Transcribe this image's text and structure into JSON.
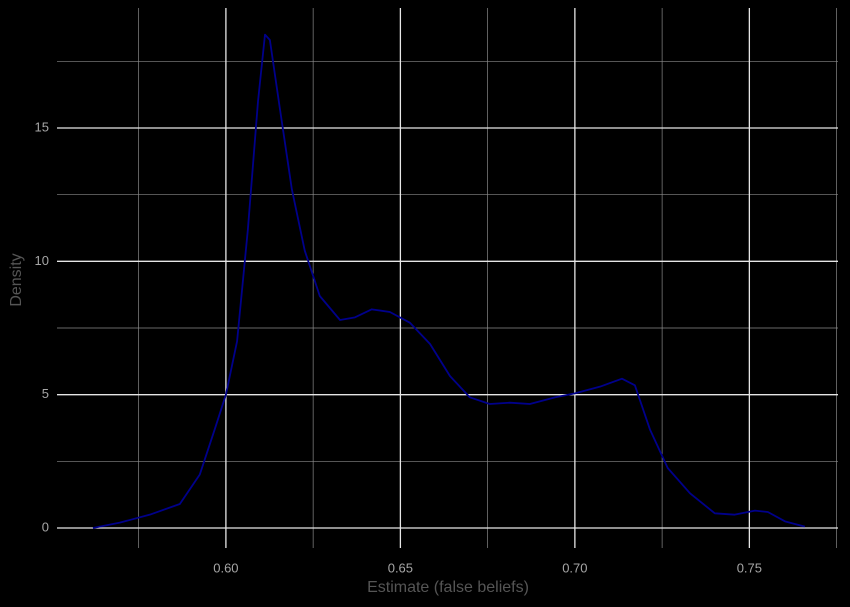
{
  "chart_data": {
    "type": "line",
    "x_label": "Estimate (false beliefs)",
    "y_label": "Density",
    "x": [
      0.5619,
      0.5696,
      0.5782,
      0.5868,
      0.5925,
      0.5968,
      0.6,
      0.6032,
      0.6063,
      0.6092,
      0.6112,
      0.6126,
      0.6155,
      0.6189,
      0.6226,
      0.6269,
      0.6327,
      0.637,
      0.6418,
      0.647,
      0.6527,
      0.6585,
      0.6642,
      0.6699,
      0.6756,
      0.6814,
      0.6871,
      0.6943,
      0.7,
      0.7072,
      0.7135,
      0.7172,
      0.7215,
      0.7266,
      0.733,
      0.7401,
      0.7458,
      0.7516,
      0.7553,
      0.7602,
      0.7659
    ],
    "series": [
      {
        "name": "density",
        "color": "#00008b",
        "values": [
          0,
          0.2,
          0.5,
          0.9,
          2.0,
          3.7,
          5.0,
          7.0,
          11.2,
          16.0,
          18.5,
          18.3,
          15.7,
          12.7,
          10.4,
          8.7,
          7.8,
          7.9,
          8.2,
          8.1,
          7.7,
          6.9,
          5.7,
          4.9,
          4.65,
          4.7,
          4.65,
          4.9,
          5.05,
          5.3,
          5.6,
          5.35,
          3.7,
          2.25,
          1.3,
          0.55,
          0.5,
          0.65,
          0.6,
          0.25,
          0.05
        ]
      }
    ],
    "xlim": [
      0.5516,
      0.7754
    ],
    "ylim": [
      -0.75,
      19.5
    ],
    "xticks": [
      {
        "value": 0.6,
        "label": "0.60"
      },
      0.65,
      {
        "value": 0.7,
        "label": "0.70"
      },
      0.75
    ],
    "yticks": [
      0,
      5,
      10,
      15
    ],
    "x_minor_ticks": [
      0.575,
      0.625,
      0.675,
      0.725,
      0.775
    ],
    "y_minor_ticks": [
      2.5,
      7.5,
      12.5,
      17.5
    ],
    "grid": true
  }
}
